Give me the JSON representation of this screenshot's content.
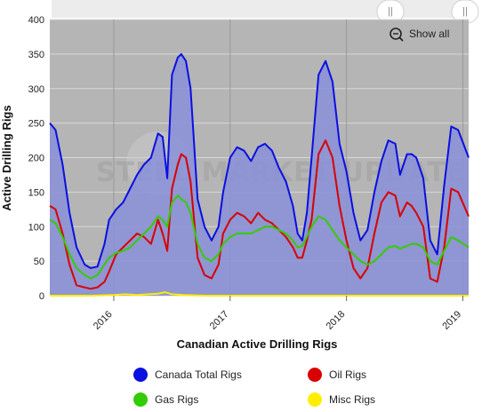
{
  "chart_data": {
    "type": "area",
    "title": "",
    "xlabel": "Canadian Active Drilling Rigs",
    "ylabel": "Active Drilling Rigs",
    "ylim": [
      0,
      400
    ],
    "yticks": [
      "0",
      "50",
      "100",
      "150",
      "200",
      "250",
      "300",
      "350",
      "400"
    ],
    "xlim": [
      2015.45,
      2019.05
    ],
    "xticks": [
      {
        "label": "2016",
        "value": 2016.0
      },
      {
        "label": "2017",
        "value": 2017.0
      },
      {
        "label": "2018",
        "value": 2018.0
      },
      {
        "label": "2019",
        "value": 2019.0
      }
    ],
    "grid": true,
    "legend_position": "bottom",
    "watermark": "STEEL MARKET UPDATE",
    "navigator_label": "Show all",
    "series": [
      {
        "name": "Canada Total Rigs",
        "color": "#0a10e0",
        "fill": true,
        "x": [
          2015.45,
          2015.5,
          2015.56,
          2015.62,
          2015.68,
          2015.75,
          2015.8,
          2015.86,
          2015.92,
          2015.96,
          2016.02,
          2016.08,
          2016.14,
          2016.2,
          2016.26,
          2016.32,
          2016.38,
          2016.42,
          2016.46,
          2016.5,
          2016.55,
          2016.58,
          2016.62,
          2016.66,
          2016.72,
          2016.78,
          2016.84,
          2016.9,
          2016.94,
          2017.0,
          2017.06,
          2017.12,
          2017.18,
          2017.24,
          2017.3,
          2017.36,
          2017.42,
          2017.48,
          2017.54,
          2017.58,
          2017.62,
          2017.66,
          2017.7,
          2017.76,
          2017.82,
          2017.88,
          2017.94,
          2018.0,
          2018.06,
          2018.12,
          2018.18,
          2018.24,
          2018.3,
          2018.36,
          2018.42,
          2018.46,
          2018.52,
          2018.56,
          2018.6,
          2018.66,
          2018.72,
          2018.78,
          2018.84,
          2018.9,
          2018.96,
          2019.05
        ],
        "values": [
          250,
          240,
          190,
          120,
          70,
          45,
          40,
          42,
          75,
          110,
          125,
          135,
          155,
          175,
          190,
          200,
          235,
          230,
          170,
          320,
          345,
          350,
          340,
          300,
          140,
          100,
          80,
          100,
          150,
          200,
          215,
          210,
          195,
          215,
          220,
          210,
          185,
          165,
          130,
          90,
          80,
          120,
          200,
          320,
          340,
          310,
          220,
          180,
          120,
          80,
          95,
          150,
          195,
          225,
          220,
          175,
          205,
          205,
          200,
          170,
          80,
          60,
          160,
          245,
          240,
          200
        ]
      },
      {
        "name": "Oil Rigs",
        "color": "#d80000",
        "fill": false,
        "x": [
          2015.45,
          2015.5,
          2015.56,
          2015.62,
          2015.68,
          2015.75,
          2015.8,
          2015.86,
          2015.92,
          2015.96,
          2016.02,
          2016.08,
          2016.14,
          2016.2,
          2016.26,
          2016.32,
          2016.38,
          2016.42,
          2016.46,
          2016.5,
          2016.55,
          2016.58,
          2016.62,
          2016.66,
          2016.72,
          2016.78,
          2016.84,
          2016.9,
          2016.94,
          2017.0,
          2017.06,
          2017.12,
          2017.18,
          2017.24,
          2017.3,
          2017.36,
          2017.42,
          2017.48,
          2017.54,
          2017.58,
          2017.62,
          2017.66,
          2017.7,
          2017.76,
          2017.82,
          2017.88,
          2017.94,
          2018.0,
          2018.06,
          2018.12,
          2018.18,
          2018.24,
          2018.3,
          2018.36,
          2018.42,
          2018.46,
          2018.52,
          2018.56,
          2018.6,
          2018.66,
          2018.72,
          2018.78,
          2018.84,
          2018.9,
          2018.96,
          2019.05
        ],
        "values": [
          130,
          125,
          90,
          45,
          15,
          12,
          10,
          12,
          20,
          35,
          60,
          70,
          80,
          90,
          85,
          75,
          110,
          90,
          65,
          155,
          190,
          205,
          200,
          165,
          55,
          30,
          25,
          45,
          90,
          110,
          120,
          115,
          105,
          120,
          110,
          105,
          95,
          85,
          70,
          55,
          55,
          80,
          110,
          205,
          225,
          200,
          130,
          80,
          40,
          25,
          40,
          90,
          135,
          150,
          145,
          115,
          135,
          130,
          120,
          100,
          25,
          20,
          70,
          155,
          150,
          115
        ]
      },
      {
        "name": "Gas Rigs",
        "color": "#33cc00",
        "fill": false,
        "x": [
          2015.45,
          2015.5,
          2015.56,
          2015.62,
          2015.68,
          2015.75,
          2015.8,
          2015.86,
          2015.92,
          2015.96,
          2016.02,
          2016.08,
          2016.14,
          2016.2,
          2016.26,
          2016.32,
          2016.38,
          2016.42,
          2016.46,
          2016.5,
          2016.55,
          2016.58,
          2016.62,
          2016.66,
          2016.72,
          2016.78,
          2016.84,
          2016.9,
          2016.94,
          2017.0,
          2017.06,
          2017.12,
          2017.18,
          2017.24,
          2017.3,
          2017.36,
          2017.42,
          2017.48,
          2017.54,
          2017.58,
          2017.62,
          2017.66,
          2017.7,
          2017.76,
          2017.82,
          2017.88,
          2017.94,
          2018.0,
          2018.06,
          2018.12,
          2018.18,
          2018.24,
          2018.3,
          2018.36,
          2018.42,
          2018.46,
          2018.52,
          2018.56,
          2018.6,
          2018.66,
          2018.72,
          2018.78,
          2018.84,
          2018.9,
          2018.96,
          2019.05
        ],
        "values": [
          110,
          105,
          85,
          60,
          40,
          30,
          25,
          30,
          45,
          55,
          62,
          65,
          70,
          80,
          90,
          100,
          115,
          110,
          100,
          135,
          145,
          140,
          135,
          120,
          75,
          55,
          50,
          60,
          75,
          85,
          90,
          90,
          90,
          95,
          100,
          100,
          95,
          90,
          80,
          70,
          72,
          85,
          100,
          115,
          110,
          95,
          80,
          70,
          60,
          50,
          45,
          50,
          60,
          70,
          72,
          68,
          72,
          75,
          75,
          70,
          50,
          45,
          65,
          85,
          80,
          70
        ]
      },
      {
        "name": "Misc Rigs",
        "color": "#ffee00",
        "fill": false,
        "x": [
          2015.45,
          2015.6,
          2015.8,
          2016.0,
          2016.1,
          2016.2,
          2016.3,
          2016.38,
          2016.44,
          2016.5,
          2016.6,
          2016.8,
          2017.0,
          2017.5,
          2018.0,
          2018.5,
          2019.05
        ],
        "values": [
          0,
          0,
          0,
          1,
          2,
          1,
          2,
          3,
          5,
          2,
          1,
          0,
          0,
          0,
          0,
          0,
          0
        ]
      }
    ]
  },
  "nav_handles": [
    "||",
    "||"
  ]
}
